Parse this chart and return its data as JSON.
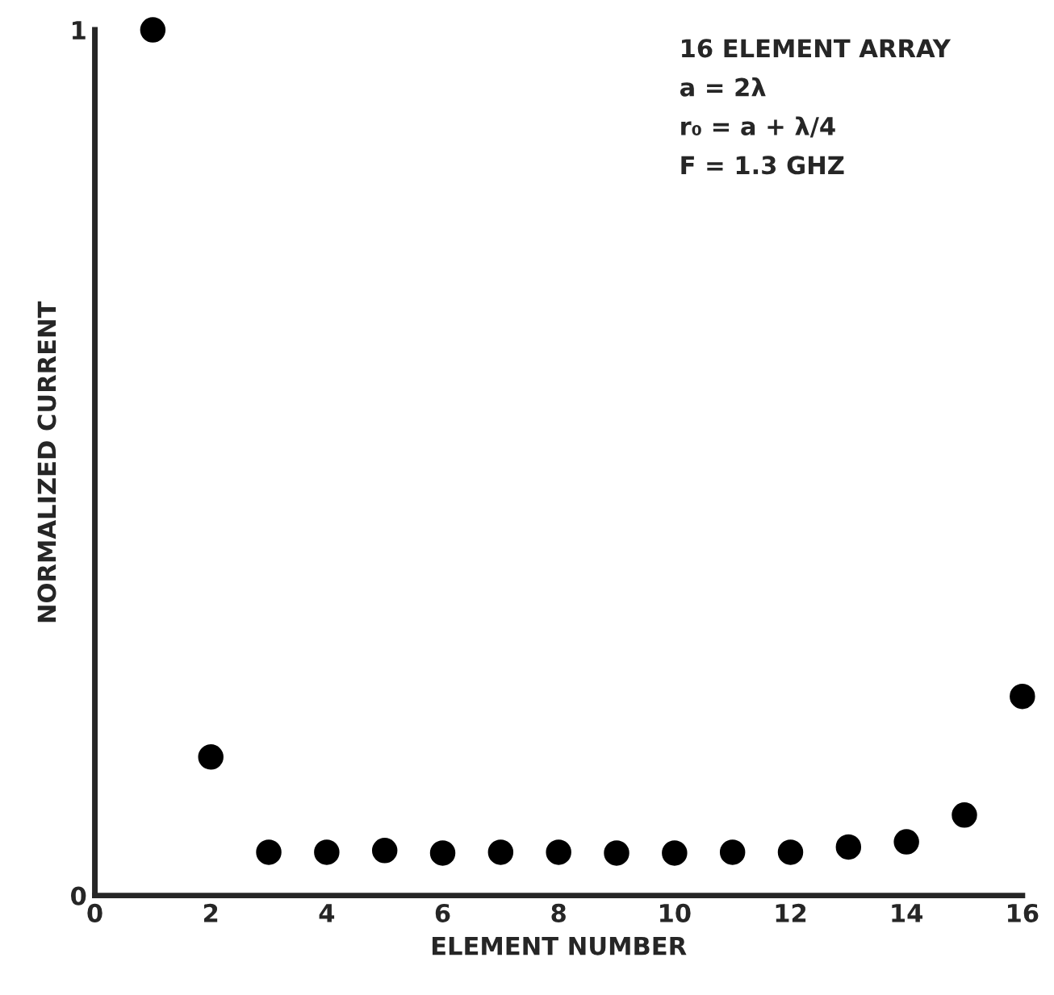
{
  "chart_data": {
    "type": "scatter",
    "xlabel": "ELEMENT NUMBER",
    "ylabel": "NORMALIZED CURRENT",
    "annotations": [
      "16 ELEMENT ARRAY",
      "a = 2λ",
      "r₀ = a + λ/4",
      "F = 1.3 GHZ"
    ],
    "x": [
      1,
      2,
      3,
      4,
      5,
      6,
      7,
      8,
      9,
      10,
      11,
      12,
      13,
      14,
      15,
      16
    ],
    "series": [
      {
        "color": "#000000",
        "values": [
          1.0,
          0.16,
          0.05,
          0.05,
          0.052,
          0.049,
          0.05,
          0.05,
          0.049,
          0.049,
          0.05,
          0.05,
          0.056,
          0.062,
          0.093,
          0.23
        ]
      }
    ],
    "xlim": [
      0,
      16
    ],
    "ylim": [
      0,
      1
    ],
    "xticks": [
      0,
      2,
      4,
      6,
      8,
      10,
      12,
      14,
      16
    ],
    "yticks": [
      0,
      1
    ],
    "grid": false,
    "legend": false,
    "marker": "circle"
  }
}
